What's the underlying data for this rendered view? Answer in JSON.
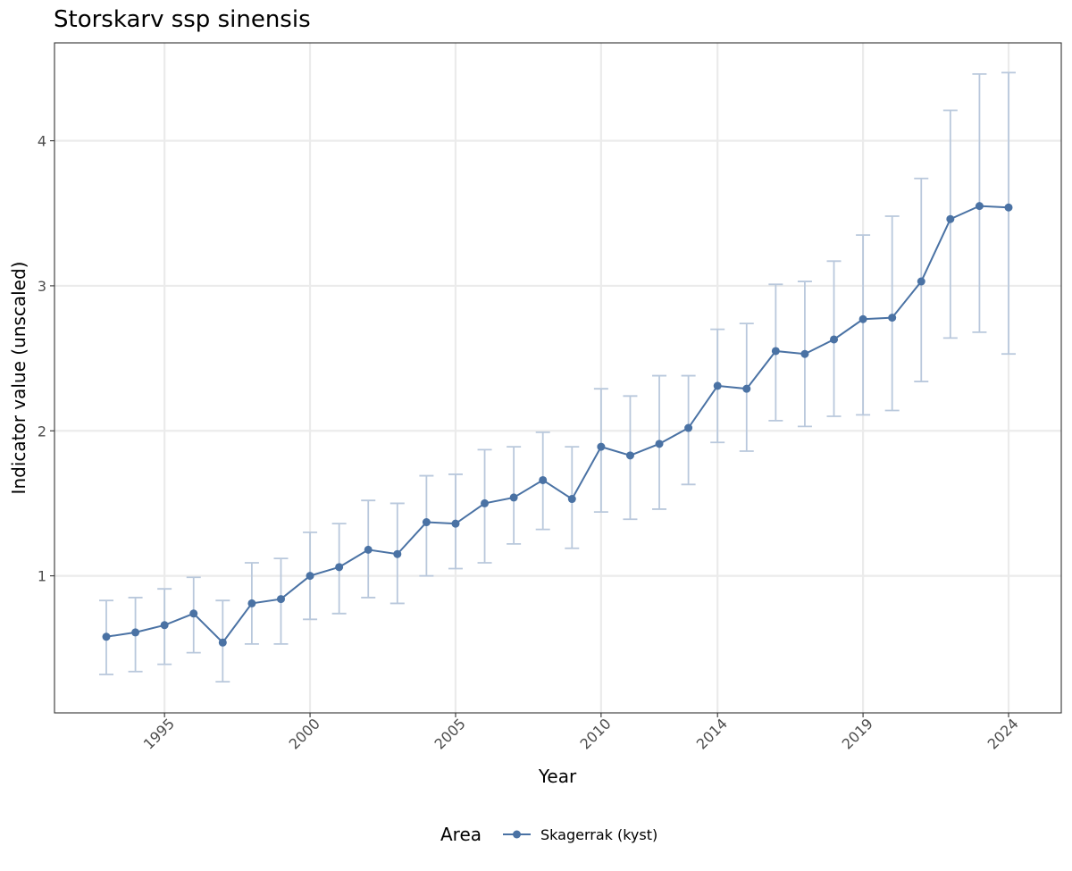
{
  "chart_data": {
    "type": "line",
    "title": "Storskarv ssp sinensis",
    "xlabel": "Year",
    "ylabel": "Indicator value (unscaled)",
    "x_ticks": [
      {
        "value": 1995,
        "label": "1995"
      },
      {
        "value": 2000,
        "label": "2000"
      },
      {
        "value": 2005,
        "label": "2005"
      },
      {
        "value": 2010,
        "label": "2010"
      },
      {
        "value": 2014,
        "label": "2014"
      },
      {
        "value": 2019,
        "label": "2019"
      },
      {
        "value": 2024,
        "label": "2024"
      }
    ],
    "y_ticks": [
      {
        "value": 1,
        "label": "1"
      },
      {
        "value": 2,
        "label": "2"
      },
      {
        "value": 3,
        "label": "3"
      },
      {
        "value": 4,
        "label": "4"
      }
    ],
    "xlim": [
      1991.2,
      2025.8
    ],
    "ylim": [
      0.055,
      4.675
    ],
    "grid": true,
    "legend": {
      "title": "Area",
      "position": "bottom"
    },
    "x_axis_note": "x positions are evenly spaced by index; tick labels show the year at that index",
    "series": [
      {
        "name": "Skagerrak (kyst)",
        "color": "#4a72a4",
        "errorbar_color": "#b9c8dc",
        "x": [
          1993,
          1994,
          1995,
          1996,
          1997,
          1998,
          1999,
          2000,
          2001,
          2002,
          2003,
          2004,
          2005,
          2006,
          2007,
          2008,
          2009,
          2010,
          2011,
          2012,
          2013,
          2014,
          2015,
          2016,
          2017,
          2018,
          2019,
          2020,
          2021,
          2022,
          2023,
          2024
        ],
        "values": [
          0.58,
          0.61,
          0.66,
          0.74,
          0.54,
          0.81,
          0.84,
          1.0,
          1.06,
          1.18,
          1.15,
          1.37,
          1.36,
          1.5,
          1.54,
          1.66,
          1.53,
          1.89,
          1.83,
          1.91,
          2.02,
          2.31,
          2.29,
          2.55,
          2.53,
          2.63,
          2.77,
          2.78,
          3.03,
          3.46,
          3.55,
          3.54
        ],
        "lower": [
          0.32,
          0.34,
          0.39,
          0.47,
          0.27,
          0.53,
          0.53,
          0.7,
          0.74,
          0.85,
          0.81,
          1.0,
          1.05,
          1.09,
          1.22,
          1.32,
          1.19,
          1.44,
          1.39,
          1.46,
          1.63,
          1.92,
          1.86,
          2.07,
          2.03,
          2.1,
          2.11,
          2.14,
          2.34,
          2.64,
          2.68,
          2.53
        ],
        "upper": [
          0.83,
          0.85,
          0.91,
          0.99,
          0.83,
          1.09,
          1.12,
          1.3,
          1.36,
          1.52,
          1.5,
          1.69,
          1.7,
          1.87,
          1.89,
          1.99,
          1.89,
          2.29,
          2.24,
          2.38,
          2.38,
          2.7,
          2.74,
          3.01,
          3.03,
          3.17,
          3.35,
          3.48,
          3.74,
          4.21,
          4.46,
          4.47
        ]
      }
    ]
  }
}
